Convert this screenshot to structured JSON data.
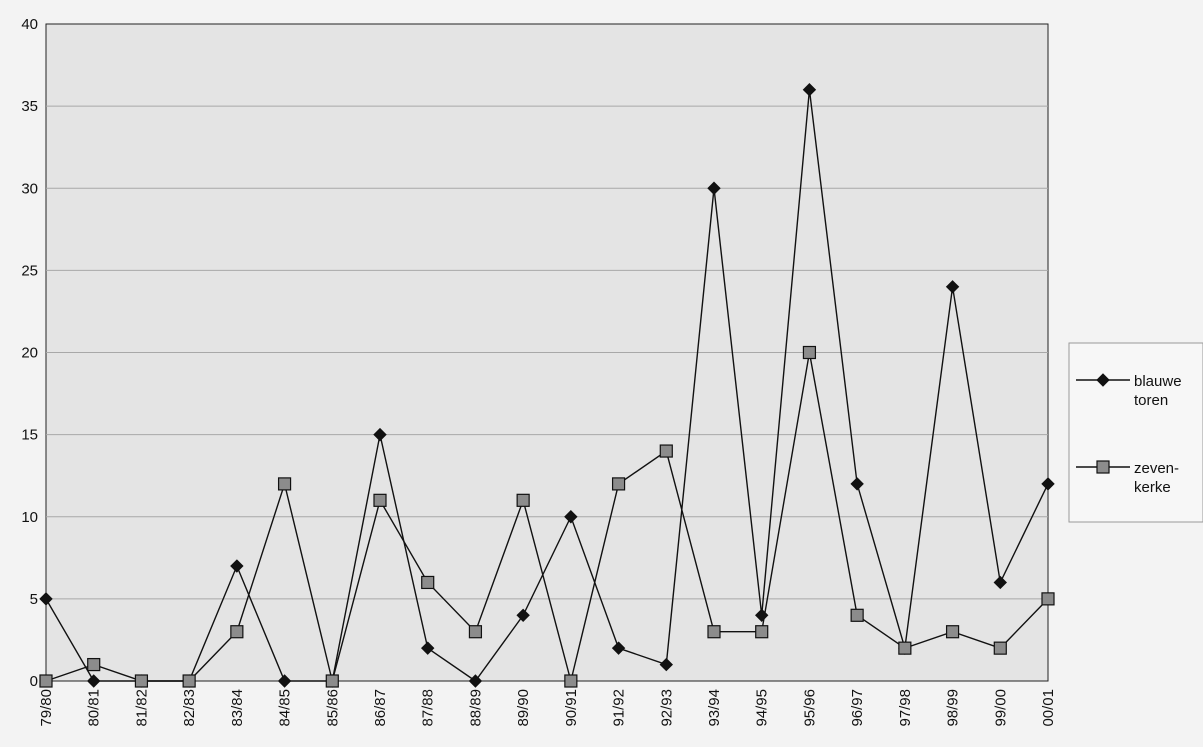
{
  "chart_data": {
    "type": "line",
    "title": "",
    "xlabel": "",
    "ylabel": "",
    "ylim": [
      0,
      40
    ],
    "yticks": [
      0,
      5,
      10,
      15,
      20,
      25,
      30,
      35,
      40
    ],
    "grid": true,
    "legend_position": "right",
    "categories": [
      "79/80",
      "80/81",
      "81/82",
      "82/83",
      "83/84",
      "84/85",
      "85/86",
      "86/87",
      "87/88",
      "88/89",
      "89/90",
      "90/91",
      "91/92",
      "92/93",
      "93/94",
      "94/95",
      "95/96",
      "96/97",
      "97/98",
      "98/99",
      "99/00",
      "00/01"
    ],
    "series": [
      {
        "name": "blauwe toren",
        "legend_lines": [
          "blauwe",
          "toren"
        ],
        "marker": "diamond",
        "color": "#111111",
        "values": [
          5,
          0,
          0,
          0,
          7,
          0,
          0,
          15,
          2,
          0,
          4,
          10,
          2,
          1,
          30,
          4,
          36,
          12,
          2,
          24,
          6,
          12
        ]
      },
      {
        "name": "zeven-kerke",
        "legend_lines": [
          "zeven-",
          "kerke"
        ],
        "marker": "square",
        "color": "#111111",
        "values": [
          0,
          1,
          0,
          0,
          3,
          12,
          0,
          11,
          6,
          3,
          11,
          0,
          12,
          14,
          3,
          3,
          20,
          4,
          2,
          3,
          2,
          5
        ]
      }
    ],
    "colors": {
      "plot_bg": "#e4e4e4",
      "grid": "#a8a8a8",
      "line": "#111111",
      "square_fill": "#8c8c8c"
    }
  }
}
